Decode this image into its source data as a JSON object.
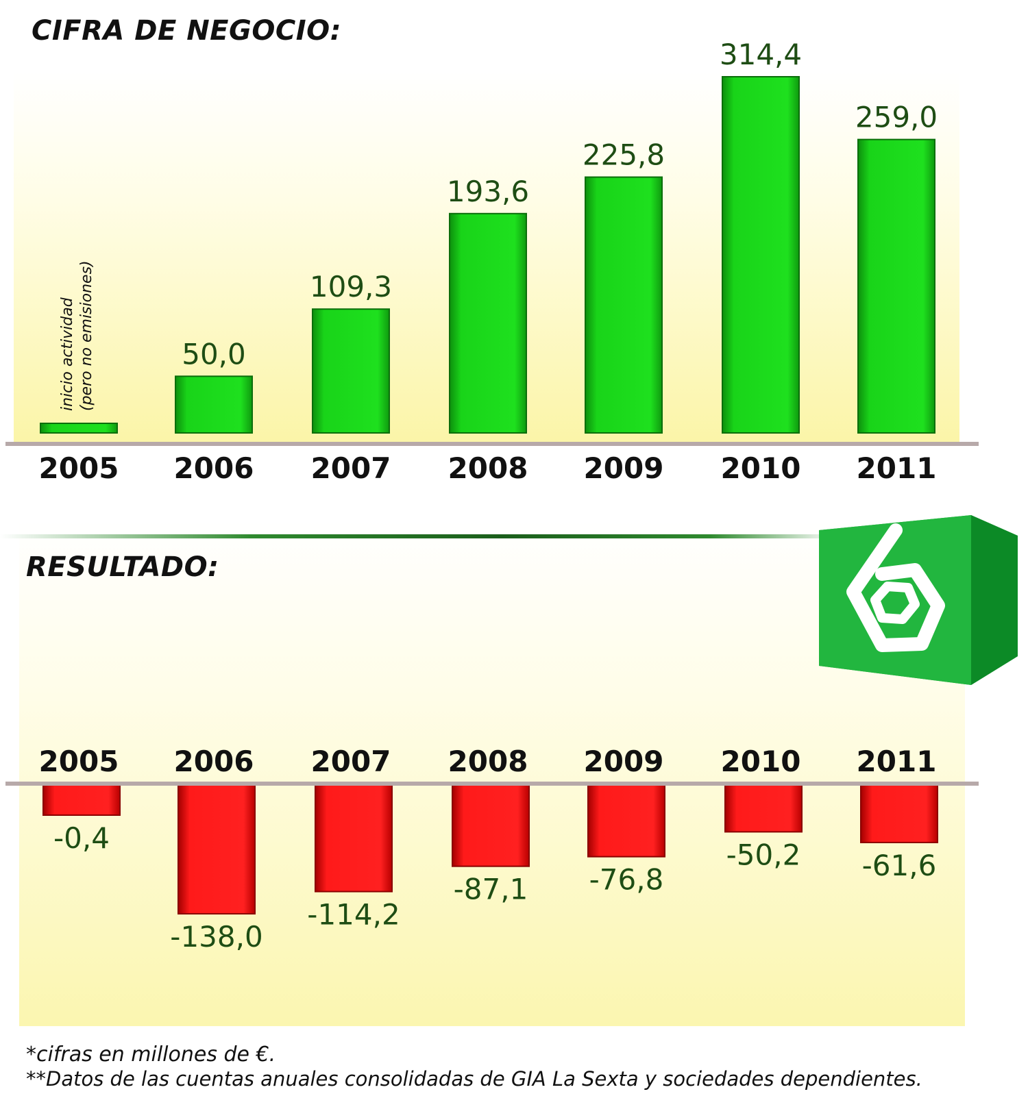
{
  "titles": {
    "top": "CIFRA DE NEGOCIO:",
    "bottom": "RESULTADO:"
  },
  "footnotes": {
    "line1": "*cifras en millones de €.",
    "line2": "**Datos de las cuentas anuales consolidadas de GIA La Sexta y sociedades dependientes."
  },
  "logo": {
    "icon": "la-sexta-6-logo",
    "color": "#1fa83a"
  },
  "colors": {
    "positive_bar": "#19d419",
    "negative_bar": "#ff1a1a",
    "value_text": "#1e4d14"
  },
  "chart_data": [
    {
      "type": "bar",
      "title": "CIFRA DE NEGOCIO:",
      "categories": [
        "2005",
        "2006",
        "2007",
        "2008",
        "2009",
        "2010",
        "2011"
      ],
      "values": [
        0,
        50.0,
        109.3,
        193.6,
        225.8,
        314.4,
        259.0
      ],
      "labels": [
        "",
        "50,0",
        "109,3",
        "193,6",
        "225,8",
        "314,4",
        "259,0"
      ],
      "annotation": {
        "category": "2005",
        "lines": [
          "inicio actividad",
          "(pero no emisiones)"
        ]
      },
      "ylim": [
        0,
        314.4
      ],
      "grid": false,
      "legend": "none"
    },
    {
      "type": "bar",
      "title": "RESULTADO:",
      "categories": [
        "2005",
        "2006",
        "2007",
        "2008",
        "2009",
        "2010",
        "2011"
      ],
      "values": [
        -0.4,
        -138.0,
        -114.2,
        -87.1,
        -76.8,
        -50.2,
        -61.6
      ],
      "labels": [
        "-0,4",
        "-138,0",
        "-114,2",
        "-87,1",
        "-76,8",
        "-50,2",
        "-61,6"
      ],
      "ylim": [
        -138.0,
        0
      ],
      "grid": false,
      "legend": "none"
    }
  ]
}
